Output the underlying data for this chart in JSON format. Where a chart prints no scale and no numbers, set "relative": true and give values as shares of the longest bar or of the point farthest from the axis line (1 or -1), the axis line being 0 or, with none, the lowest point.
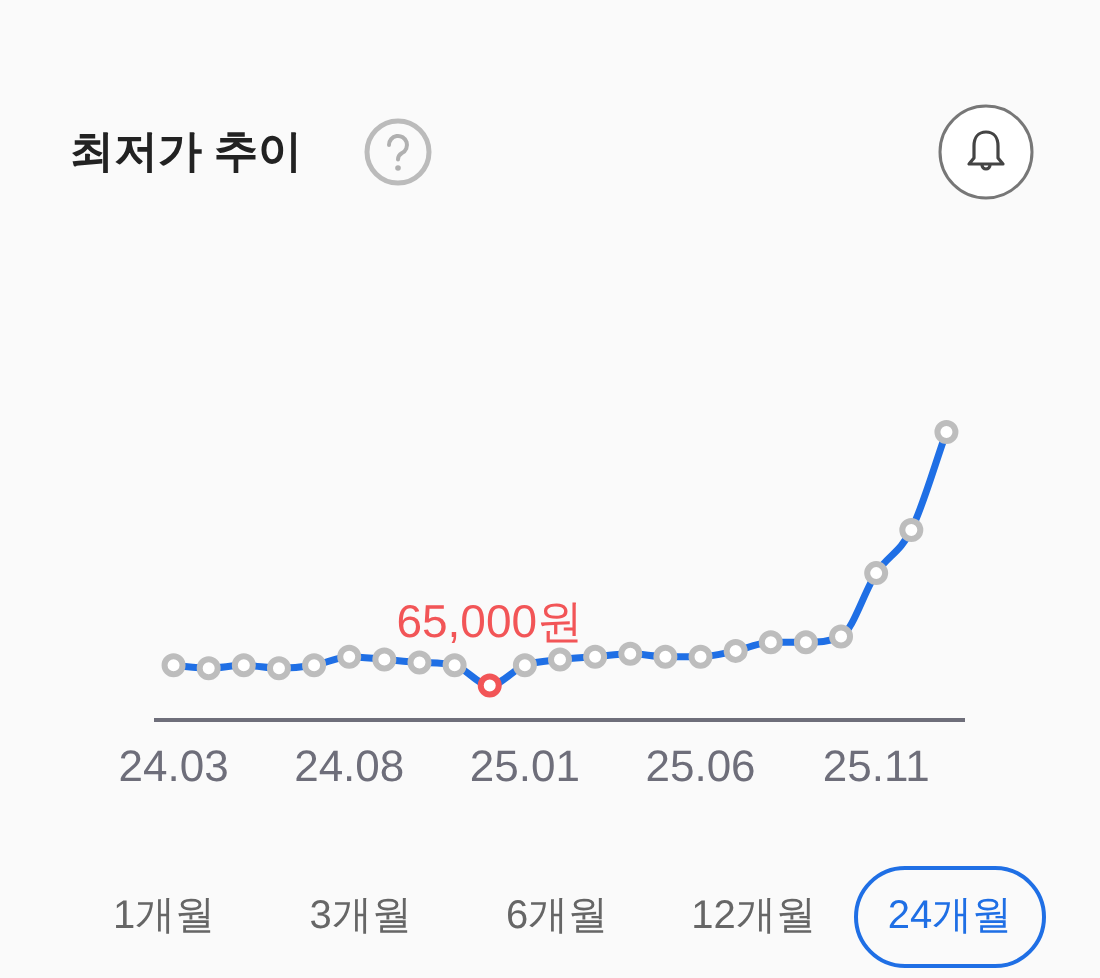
{
  "chart_data": {
    "type": "line",
    "title": "최저가 추이",
    "categories": [
      "24.03",
      null,
      null,
      null,
      null,
      "24.08",
      null,
      null,
      null,
      null,
      "25.01",
      null,
      null,
      null,
      null,
      "25.06",
      null,
      null,
      null,
      null,
      "25.11",
      null,
      null
    ],
    "series": [
      {
        "color": "#1f6fe5",
        "colors": [
          "#bdbdbd",
          "#bdbdbd",
          "#bdbdbd",
          "#bdbdbd",
          "#bdbdbd",
          "#bdbdbd",
          "#bdbdbd",
          "#bdbdbd",
          "#bdbdbd",
          "#f25557",
          "#bdbdbd",
          "#bdbdbd",
          "#bdbdbd",
          "#bdbdbd",
          "#bdbdbd",
          "#bdbdbd",
          "#bdbdbd",
          "#bdbdbd",
          "#bdbdbd",
          "#bdbdbd",
          "#bdbdbd",
          "#bdbdbd",
          "#bdbdbd"
        ],
        "values": [
          0.19,
          0.18,
          0.19,
          0.18,
          0.19,
          0.22,
          0.21,
          0.2,
          0.19,
          0.12,
          0.19,
          0.21,
          0.22,
          0.23,
          0.22,
          0.22,
          0.24,
          0.27,
          0.27,
          0.29,
          0.51,
          0.66,
          1
        ]
      }
    ],
    "relative": true,
    "marker": "circle",
    "line_style": "solid",
    "grid": false,
    "legend": false,
    "annotations": [
      {
        "text": "65,000원",
        "y": 0.12
      },
      "1개월",
      "3개월",
      "6개월",
      "12개월",
      "24개월"
    ]
  }
}
